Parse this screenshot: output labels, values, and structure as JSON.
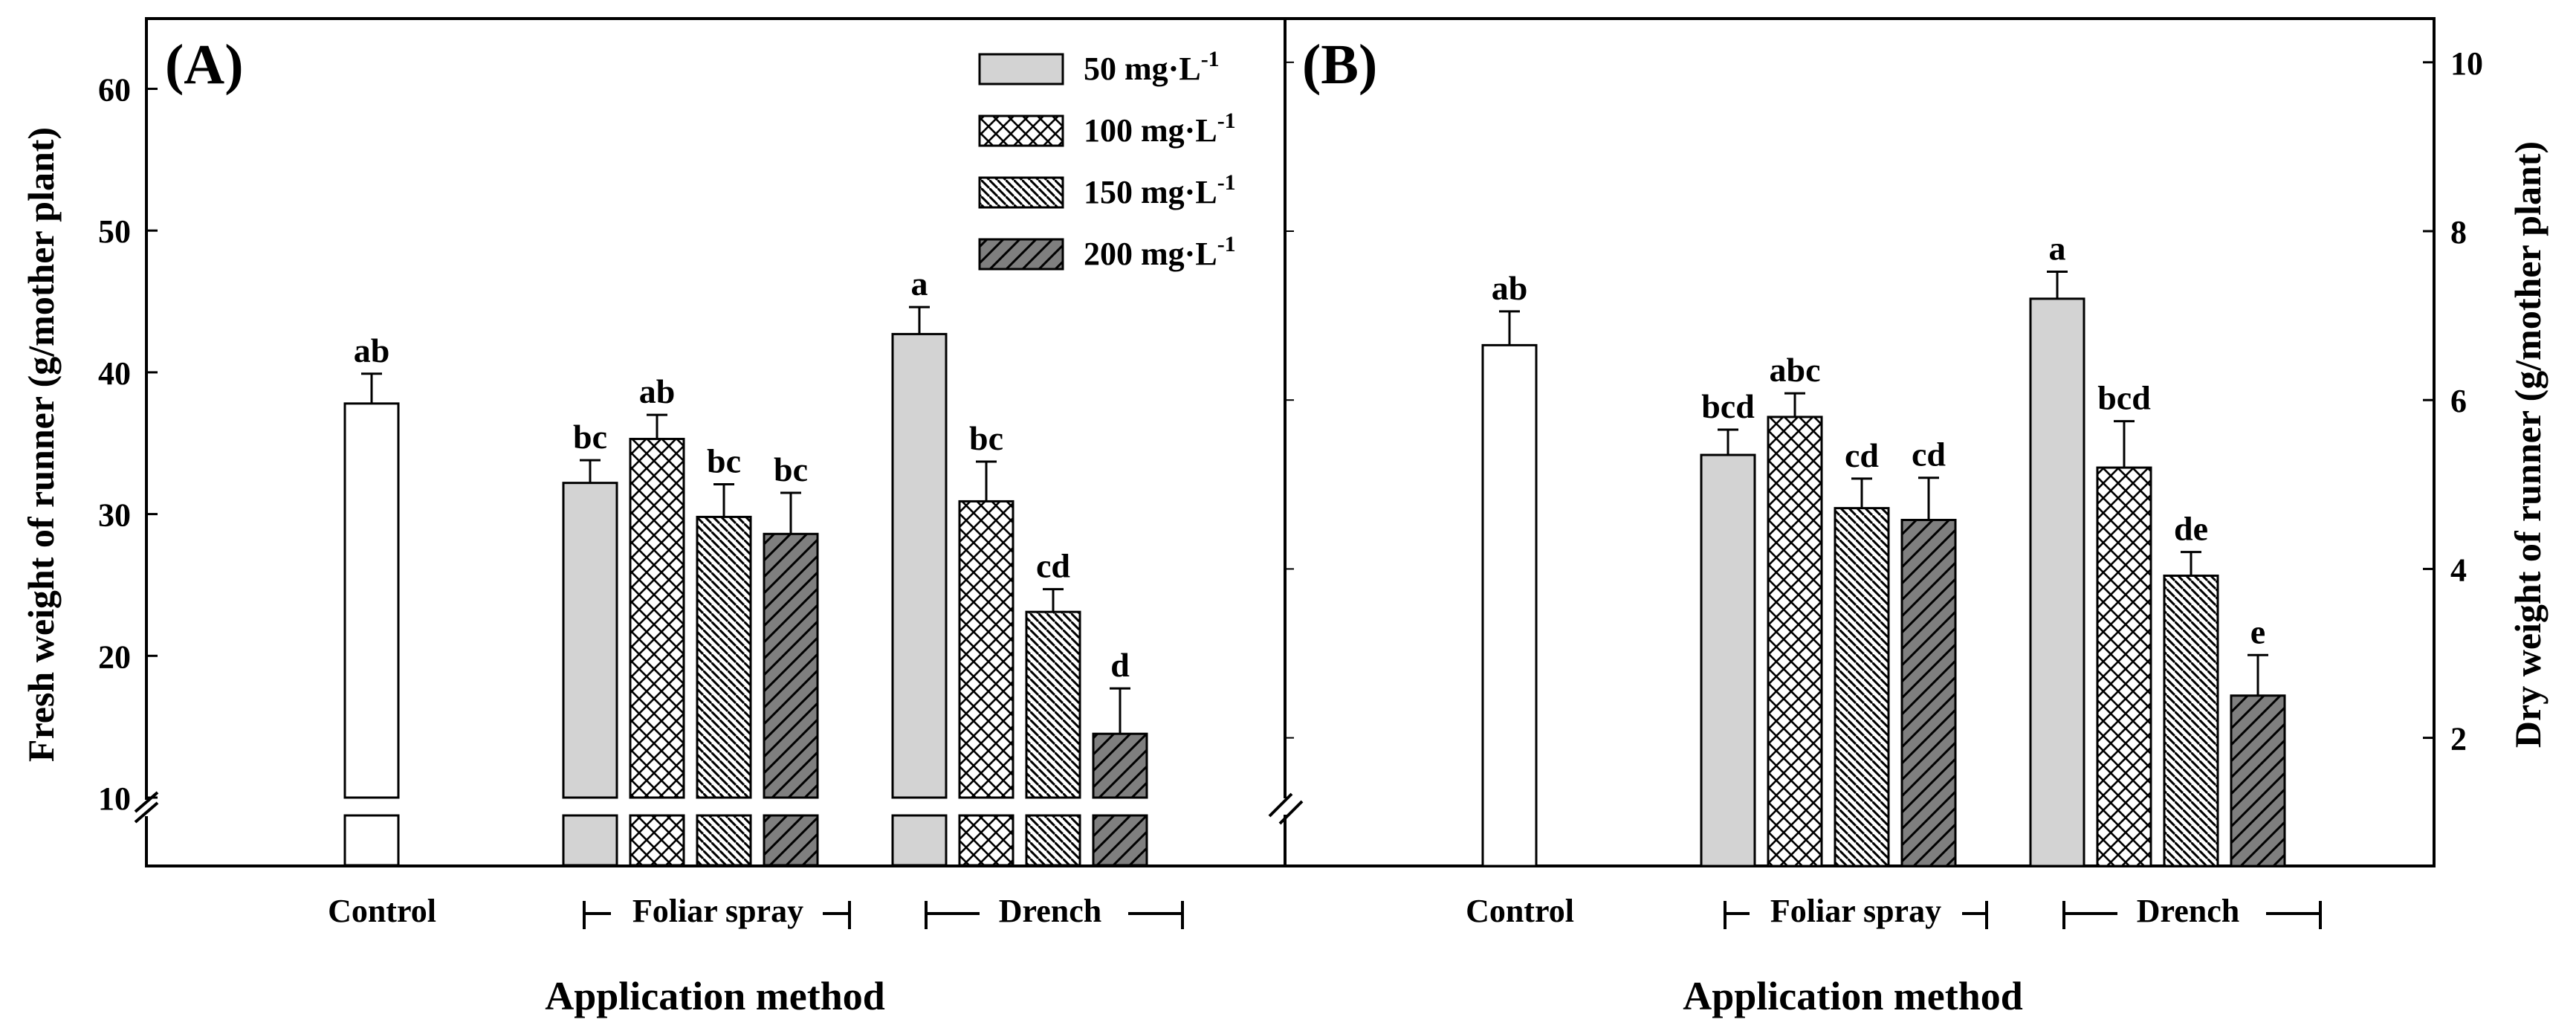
{
  "chart_data": [
    {
      "type": "bar",
      "panel_label": "(A)",
      "ylabel": "Fresh weight of runner (g/mother plant)",
      "xlabel": "Application method",
      "axis_break": true,
      "ylim": [
        4,
        65
      ],
      "yticks": [
        10,
        20,
        30,
        40,
        50,
        60
      ],
      "groups": [
        {
          "label": "Control",
          "bracketed": false
        },
        {
          "label": "Foliar spray",
          "bracketed": true
        },
        {
          "label": "Drench",
          "bracketed": true
        }
      ],
      "legend": {
        "position": "top-right",
        "entries": [
          {
            "label": "50 mg·L",
            "sup": "-1",
            "pattern": "solid-light"
          },
          {
            "label": "100 mg·L",
            "sup": "-1",
            "pattern": "crosshatch"
          },
          {
            "label": "150 mg·L",
            "sup": "-1",
            "pattern": "diag-dense"
          },
          {
            "label": "200 mg·L",
            "sup": "-1",
            "pattern": "diag-dark"
          }
        ]
      },
      "bars": [
        {
          "group": "Control",
          "series": "Control",
          "value": 37.8,
          "error": 2.1,
          "letter": "ab",
          "pattern": "open"
        },
        {
          "group": "Foliar spray",
          "series": "50 mg·L-1",
          "value": 32.2,
          "error": 1.6,
          "letter": "bc",
          "pattern": "solid-light"
        },
        {
          "group": "Foliar spray",
          "series": "100 mg·L-1",
          "value": 35.3,
          "error": 1.7,
          "letter": "ab",
          "pattern": "crosshatch"
        },
        {
          "group": "Foliar spray",
          "series": "150 mg·L-1",
          "value": 29.8,
          "error": 2.3,
          "letter": "bc",
          "pattern": "diag-dense"
        },
        {
          "group": "Foliar spray",
          "series": "200 mg·L-1",
          "value": 28.6,
          "error": 2.9,
          "letter": "bc",
          "pattern": "diag-dark"
        },
        {
          "group": "Drench",
          "series": "50 mg·L-1",
          "value": 42.7,
          "error": 1.9,
          "letter": "a",
          "pattern": "solid-light"
        },
        {
          "group": "Drench",
          "series": "100 mg·L-1",
          "value": 30.9,
          "error": 2.8,
          "letter": "bc",
          "pattern": "crosshatch"
        },
        {
          "group": "Drench",
          "series": "150 mg·L-1",
          "value": 23.1,
          "error": 1.6,
          "letter": "cd",
          "pattern": "diag-dense"
        },
        {
          "group": "Drench",
          "series": "200 mg·L-1",
          "value": 14.5,
          "error": 3.2,
          "letter": "d",
          "pattern": "diag-dark"
        }
      ]
    },
    {
      "type": "bar",
      "panel_label": "(B)",
      "ylabel": "Dry weight of runner (g/mother plant)",
      "xlabel": "Application method",
      "axis_break": false,
      "ylim": [
        0.5,
        10.5
      ],
      "yticks": [
        2,
        4,
        6,
        8,
        10
      ],
      "groups": [
        {
          "label": "Control",
          "bracketed": false
        },
        {
          "label": "Foliar spray",
          "bracketed": true
        },
        {
          "label": "Drench",
          "bracketed": true
        }
      ],
      "bars": [
        {
          "group": "Control",
          "series": "Control",
          "value": 6.65,
          "error": 0.4,
          "letter": "ab",
          "pattern": "open"
        },
        {
          "group": "Foliar spray",
          "series": "50 mg·L-1",
          "value": 5.35,
          "error": 0.3,
          "letter": "bcd",
          "pattern": "solid-light"
        },
        {
          "group": "Foliar spray",
          "series": "100 mg·L-1",
          "value": 5.8,
          "error": 0.28,
          "letter": "abc",
          "pattern": "crosshatch"
        },
        {
          "group": "Foliar spray",
          "series": "150 mg·L-1",
          "value": 4.72,
          "error": 0.35,
          "letter": "cd",
          "pattern": "diag-dense"
        },
        {
          "group": "Foliar spray",
          "series": "200 mg·L-1",
          "value": 4.58,
          "error": 0.5,
          "letter": "cd",
          "pattern": "diag-dark"
        },
        {
          "group": "Drench",
          "series": "50 mg·L-1",
          "value": 7.2,
          "error": 0.32,
          "letter": "a",
          "pattern": "solid-light"
        },
        {
          "group": "Drench",
          "series": "100 mg·L-1",
          "value": 5.2,
          "error": 0.55,
          "letter": "bcd",
          "pattern": "crosshatch"
        },
        {
          "group": "Drench",
          "series": "150 mg·L-1",
          "value": 3.92,
          "error": 0.28,
          "letter": "de",
          "pattern": "diag-dense"
        },
        {
          "group": "Drench",
          "series": "200 mg·L-1",
          "value": 2.5,
          "error": 0.48,
          "letter": "e",
          "pattern": "diag-dark"
        }
      ]
    }
  ]
}
